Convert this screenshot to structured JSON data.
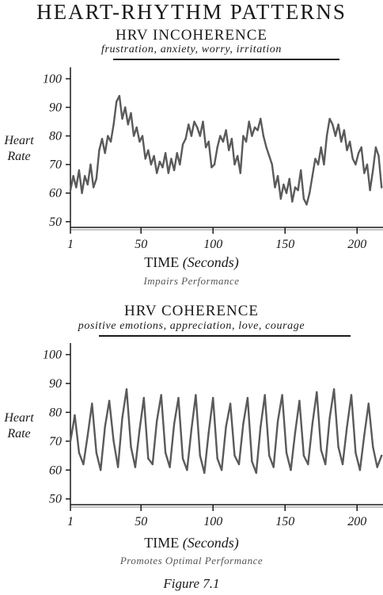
{
  "page_title": "HEART-RHYTHM PATTERNS",
  "figure_label": "Figure 7.1",
  "chart_data": [
    {
      "type": "line",
      "title": "HRV INCOHERENCE",
      "subtitle": "frustration, anxiety, worry, irritation",
      "ylabel_lines": [
        "Heart",
        "Rate"
      ],
      "xlabel": "TIME",
      "xlabel_unit": "(Seconds)",
      "caption": "Impairs Performance",
      "xlim": [
        1,
        218
      ],
      "ylim": [
        48,
        104
      ],
      "x_ticks": [
        1,
        50,
        100,
        150,
        200
      ],
      "x_tick_labels": [
        "1",
        "50",
        "100",
        "150",
        "200"
      ],
      "y_ticks": [
        50,
        60,
        70,
        80,
        90,
        100
      ],
      "y_tick_labels": [
        "50",
        "60",
        "70",
        "80",
        "90",
        "100"
      ],
      "grid": false,
      "color": "#5a5a5a",
      "series": [
        {
          "x": [
            1,
            3,
            5,
            7,
            9,
            11,
            13,
            15,
            17,
            19,
            21,
            23,
            25,
            27,
            29,
            31,
            33,
            35,
            37,
            39,
            41,
            43,
            45,
            47,
            49,
            51,
            53,
            55,
            57,
            59,
            61,
            63,
            65,
            67,
            69,
            71,
            73,
            75,
            77,
            79,
            81,
            83,
            85,
            87,
            89,
            91,
            93,
            95,
            97,
            99,
            101,
            103,
            105,
            107,
            109,
            111,
            113,
            115,
            117,
            119,
            121,
            123,
            125,
            127,
            129,
            131,
            133,
            135,
            137,
            139,
            141,
            143,
            145,
            147,
            149,
            151,
            153,
            155,
            157,
            159,
            161,
            163,
            165,
            167,
            169,
            171,
            173,
            175,
            177,
            179,
            181,
            183,
            185,
            187,
            189,
            191,
            193,
            195,
            197,
            199,
            201,
            203,
            205,
            207,
            209,
            211,
            213,
            215,
            217
          ],
          "y": [
            61,
            66,
            62,
            68,
            60,
            66,
            63,
            70,
            62,
            65,
            75,
            79,
            74,
            80,
            78,
            84,
            92,
            94,
            86,
            90,
            84,
            88,
            80,
            83,
            78,
            80,
            72,
            75,
            70,
            73,
            67,
            71,
            69,
            74,
            67,
            72,
            68,
            74,
            70,
            77,
            79,
            84,
            80,
            85,
            83,
            80,
            85,
            76,
            78,
            69,
            70,
            76,
            80,
            78,
            82,
            75,
            79,
            70,
            73,
            67,
            80,
            78,
            85,
            80,
            83,
            82,
            86,
            80,
            76,
            73,
            70,
            62,
            66,
            58,
            63,
            60,
            65,
            57,
            62,
            61,
            68,
            58,
            56,
            60,
            66,
            72,
            70,
            76,
            70,
            80,
            86,
            84,
            80,
            84,
            78,
            82,
            75,
            78,
            72,
            70,
            74,
            76,
            67,
            70,
            61,
            68,
            76,
            73,
            62
          ]
        }
      ]
    },
    {
      "type": "line",
      "title": "HRV COHERENCE",
      "subtitle": "positive emotions, appreciation, love, courage",
      "ylabel_lines": [
        "Heart",
        "Rate"
      ],
      "xlabel": "TIME",
      "xlabel_unit": "(Seconds)",
      "caption": "Promotes Optimal Performance",
      "xlim": [
        1,
        218
      ],
      "ylim": [
        48,
        104
      ],
      "x_ticks": [
        1,
        50,
        100,
        150,
        200
      ],
      "x_tick_labels": [
        "1",
        "50",
        "100",
        "150",
        "200"
      ],
      "y_ticks": [
        50,
        60,
        70,
        80,
        90,
        100
      ],
      "y_tick_labels": [
        "50",
        "60",
        "70",
        "80",
        "90",
        "100"
      ],
      "grid": false,
      "color": "#5a5a5a",
      "series": [
        {
          "x": [
            1,
            4,
            7,
            10,
            13,
            16,
            19,
            22,
            25,
            28,
            31,
            34,
            37,
            40,
            43,
            46,
            49,
            52,
            55,
            58,
            61,
            64,
            67,
            70,
            73,
            76,
            79,
            82,
            85,
            88,
            91,
            94,
            97,
            100,
            103,
            106,
            109,
            112,
            115,
            118,
            121,
            124,
            127,
            130,
            133,
            136,
            139,
            142,
            145,
            148,
            151,
            154,
            157,
            160,
            163,
            166,
            169,
            172,
            175,
            178,
            181,
            184,
            187,
            190,
            193,
            196,
            199,
            202,
            205,
            208,
            211,
            214,
            217
          ],
          "y": [
            70,
            79,
            66,
            62,
            72,
            83,
            66,
            60,
            75,
            84,
            70,
            61,
            78,
            88,
            68,
            61,
            74,
            85,
            64,
            62,
            77,
            86,
            66,
            61,
            76,
            85,
            64,
            60,
            74,
            86,
            65,
            59,
            73,
            85,
            64,
            60,
            75,
            83,
            65,
            62,
            76,
            85,
            63,
            59,
            75,
            86,
            65,
            61,
            77,
            86,
            66,
            60,
            73,
            84,
            65,
            62,
            76,
            87,
            67,
            62,
            78,
            88,
            68,
            62,
            75,
            86,
            66,
            60,
            72,
            83,
            68,
            61,
            65
          ]
        }
      ]
    }
  ]
}
